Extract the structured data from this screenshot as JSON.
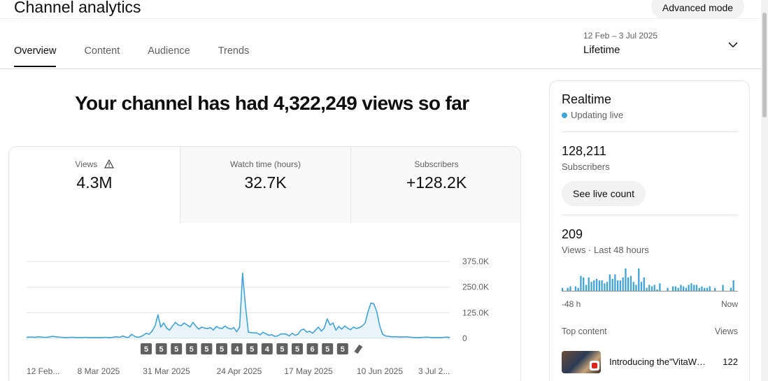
{
  "header": {
    "title": "Channel analytics",
    "advanced_mode": "Advanced mode"
  },
  "tabs": [
    {
      "label": "Overview",
      "active": true
    },
    {
      "label": "Content",
      "active": false
    },
    {
      "label": "Audience",
      "active": false
    },
    {
      "label": "Trends",
      "active": false
    }
  ],
  "date_picker": {
    "range": "12 Feb – 3 Jul 2025",
    "value": "Lifetime"
  },
  "headline": "Your channel has had 4,322,249 views so far",
  "metrics": [
    {
      "label": "Views",
      "value": "4.3M",
      "warning_icon": "warning-triangle-icon"
    },
    {
      "label": "Watch time (hours)",
      "value": "32.7K"
    },
    {
      "label": "Subscribers",
      "value": "+128.2K"
    }
  ],
  "chart_data": {
    "type": "area",
    "ylim": [
      0,
      375000
    ],
    "y_ticks": [
      "0",
      "125.0K",
      "250.0K",
      "375.0K"
    ],
    "x_tick_labels": [
      "12 Feb...",
      "8 Mar 2025",
      "31 Mar 2025",
      "24 Apr 2025",
      "17 May 2025",
      "10 Jun 2025",
      "3 Jul 2..."
    ],
    "color": "#41a4d9",
    "values": [
      5000,
      6000,
      6000,
      5000,
      8000,
      6000,
      5000,
      5000,
      8000,
      10000,
      8000,
      6000,
      5000,
      4000,
      4000,
      5000,
      5000,
      4000,
      4000,
      4000,
      5000,
      4000,
      4000,
      4000,
      4000,
      4000,
      4000,
      5000,
      4000,
      4000,
      6000,
      8000,
      5000,
      12000,
      5000,
      5000,
      20000,
      10000,
      5000,
      8000,
      15000,
      25000,
      20000,
      35000,
      60000,
      115000,
      55000,
      75000,
      50000,
      40000,
      60000,
      78000,
      65000,
      62000,
      75000,
      65000,
      55000,
      78000,
      60000,
      45000,
      55000,
      50000,
      48000,
      52000,
      40000,
      58000,
      50000,
      48000,
      60000,
      50000,
      45000,
      53000,
      32000,
      55000,
      318000,
      160000,
      30000,
      28000,
      27000,
      26000,
      17000,
      30000,
      22000,
      15000,
      18000,
      10000,
      12000,
      20000,
      22000,
      20000,
      12000,
      25000,
      15000,
      20000,
      40000,
      45000,
      30000,
      35000,
      25000,
      40000,
      55000,
      35000,
      50000,
      95000,
      65000,
      75000,
      40000,
      58000,
      45000,
      60000,
      50000,
      42000,
      55000,
      48000,
      52000,
      60000,
      75000,
      130000,
      172000,
      168000,
      130000,
      60000,
      20000,
      12000,
      10000,
      8000,
      8000,
      8000,
      6000,
      7000,
      8000,
      6000,
      5000,
      4000,
      4000,
      4000,
      5000,
      6000,
      5000,
      4000,
      4000,
      4000,
      4000,
      5000,
      6000,
      4000
    ],
    "markers": [
      "5",
      "5",
      "5",
      "5",
      "5",
      "5",
      "4",
      "5",
      "4",
      "5",
      "5",
      "6",
      "5",
      "5"
    ],
    "shorts_marker": "shorts-icon"
  },
  "realtime": {
    "title": "Realtime",
    "status": "Updating live",
    "subscribers_value": "128,211",
    "subscribers_label": "Subscribers",
    "live_count_button": "See live count",
    "views_value": "209",
    "views_label": "Views · Last 48 hours",
    "bars": [
      2,
      0,
      2,
      3,
      0,
      3,
      2,
      10,
      9,
      4,
      9,
      6,
      7,
      8,
      7,
      7,
      5,
      6,
      11,
      8,
      11,
      7,
      7,
      9,
      15,
      9,
      10,
      6,
      4,
      15,
      6,
      9,
      2,
      4,
      3,
      4,
      1,
      5,
      0,
      0,
      2,
      0,
      3,
      3,
      2,
      4,
      3,
      2,
      4,
      5,
      4,
      4,
      2,
      3,
      2,
      2,
      3,
      0,
      2,
      0,
      0,
      4,
      0,
      0,
      2,
      7,
      0
    ],
    "axis_left": "-48 h",
    "axis_right": "Now",
    "top_content_label": "Top content",
    "top_content_views_label": "Views",
    "top_item": {
      "title": "Introducing the\"VitaWellness...\"",
      "views": "122"
    }
  }
}
